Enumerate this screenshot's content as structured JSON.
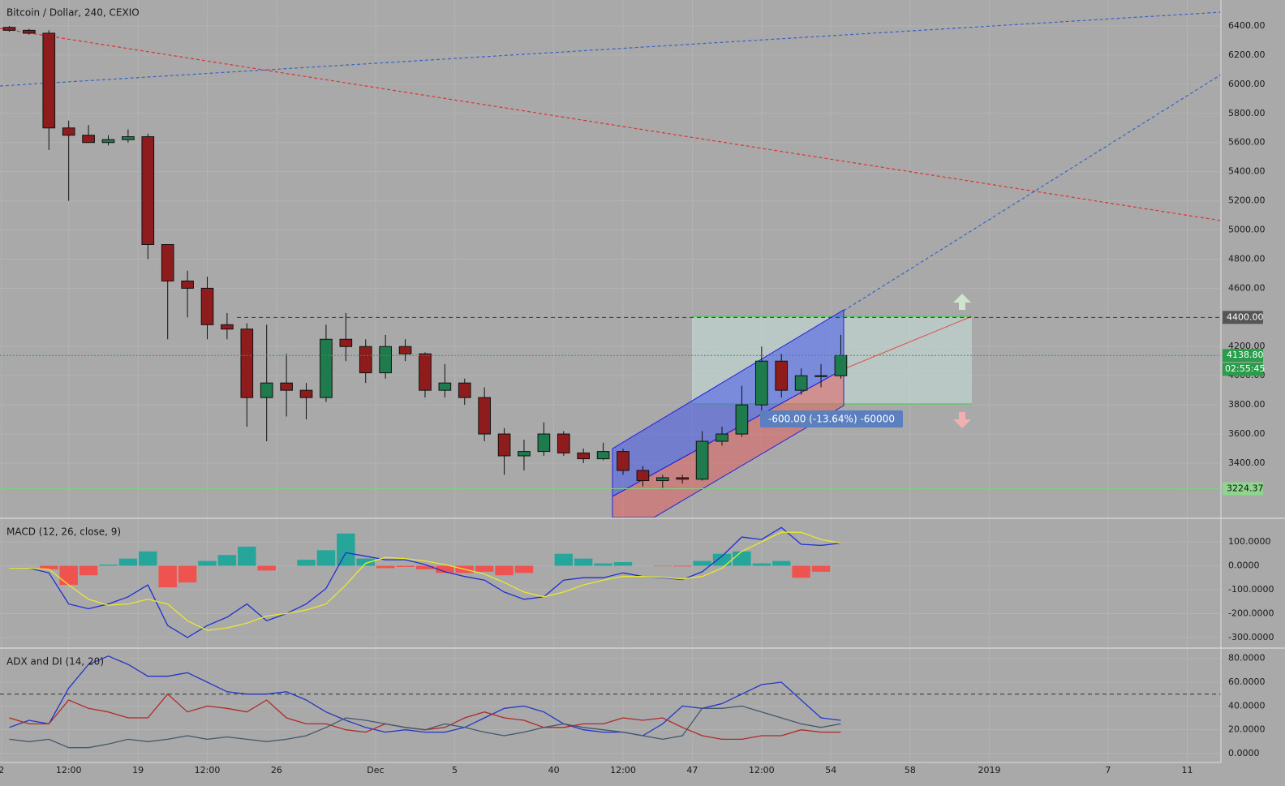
{
  "chart_data": [
    {
      "type": "candlestick",
      "title": "Bitcoin / Dollar, 240, CEXIO",
      "x": [
        12,
        13,
        14,
        15,
        16,
        17,
        18,
        19,
        20,
        21,
        22,
        23,
        24,
        25,
        26,
        27,
        28,
        29,
        30,
        31,
        32,
        33,
        34,
        35,
        36,
        37,
        38,
        39,
        40,
        41,
        42,
        43,
        44,
        45,
        46,
        47,
        48,
        49,
        50,
        51,
        52,
        53,
        54
      ],
      "open": [
        6390,
        6370,
        6350,
        5700,
        5650,
        5600,
        5620,
        5640,
        4900,
        4650,
        4600,
        4350,
        4320,
        3850,
        3950,
        3900,
        3850,
        4250,
        4200,
        4020,
        4200,
        4150,
        3900,
        3950,
        3850,
        3600,
        3450,
        3480,
        3600,
        3470,
        3430,
        3480,
        3350,
        3280,
        3300,
        3290,
        3550,
        3600,
        3800,
        4100,
        3900,
        4000,
        4000
      ],
      "high": [
        6400,
        6380,
        6370,
        5750,
        5720,
        5650,
        5690,
        5660,
        4900,
        4720,
        4680,
        4430,
        4360,
        4350,
        4150,
        3950,
        4350,
        4430,
        4250,
        4280,
        4250,
        4160,
        4080,
        3980,
        3920,
        3640,
        3560,
        3680,
        3620,
        3500,
        3540,
        3500,
        3380,
        3320,
        3320,
        3620,
        3650,
        3930,
        4200,
        4150,
        4050,
        4080,
        4280
      ],
      "low": [
        6360,
        6340,
        5550,
        5200,
        5600,
        5580,
        5600,
        4800,
        4250,
        4400,
        4250,
        4250,
        3650,
        3550,
        3720,
        3700,
        3820,
        4100,
        3950,
        3980,
        4100,
        3850,
        3850,
        3800,
        3550,
        3320,
        3350,
        3450,
        3450,
        3400,
        3420,
        3320,
        3240,
        3230,
        3260,
        3280,
        3520,
        3580,
        3720,
        3850,
        3870,
        3920,
        3980
      ],
      "close": [
        6370,
        6350,
        5700,
        5650,
        5600,
        5620,
        5640,
        4900,
        4650,
        4600,
        4350,
        4320,
        3850,
        3950,
        3900,
        3850,
        4250,
        4200,
        4020,
        4200,
        4150,
        3900,
        3950,
        3850,
        3600,
        3450,
        3480,
        3600,
        3470,
        3430,
        3480,
        3350,
        3280,
        3300,
        3290,
        3550,
        3600,
        3800,
        4100,
        3900,
        4000,
        4000,
        4138.8
      ],
      "up_color": "#1f7a4d",
      "down_color": "#8e1c1c",
      "xlim": [
        12.03,
        73.7
      ],
      "xticks": [
        {
          "value": 12.1,
          "label": "2"
        },
        {
          "value": 15.5,
          "label": "12:00"
        },
        19,
        {
          "value": 22.5,
          "label": "12:00"
        },
        26,
        {
          "value": 31,
          "label": "Dec"
        },
        {
          "value": 35,
          "label": "5"
        },
        40,
        {
          "value": 43.5,
          "label": "12:00"
        },
        47,
        {
          "value": 50.5,
          "label": "12:00"
        },
        54,
        58,
        {
          "value": 62,
          "label": "2019"
        },
        {
          "value": 68,
          "label": "7"
        },
        {
          "value": 72,
          "label": "11"
        }
      ],
      "ylim": [
        3027,
        6578
      ],
      "yticks": [
        {
          "value": 3400,
          "label": "3400.00"
        },
        {
          "value": 3600,
          "label": "3600.00"
        },
        {
          "value": 3800,
          "label": "3800.00"
        },
        {
          "value": 4000,
          "label": "4000.00"
        },
        {
          "value": 4200,
          "label": "4200.00"
        },
        {
          "value": 4600,
          "label": "4600.00"
        },
        {
          "value": 4800,
          "label": "4800.00"
        },
        {
          "value": 5000,
          "label": "5000.00"
        },
        {
          "value": 5200,
          "label": "5200.00"
        },
        {
          "value": 5400,
          "label": "5400.00"
        },
        {
          "value": 5600,
          "label": "5600.00"
        },
        {
          "value": 5800,
          "label": "5800.00"
        },
        {
          "value": 6000,
          "label": "6000.00"
        },
        {
          "value": 6200,
          "label": "6200.00"
        },
        {
          "value": 6400,
          "label": "6400.00"
        }
      ],
      "grid": true,
      "resistance": {
        "value": 4400,
        "label": "4400.00"
      },
      "last_price": {
        "value": 4138.8,
        "label": "4138.80"
      },
      "countdown": "02:55:45",
      "support": {
        "value": 3224.37,
        "label": "3224.37"
      },
      "position_label": "-600.00 (-13.64%) -60000"
    },
    {
      "type": "macd",
      "title": "MACD (12, 26, close, 9)",
      "series": [
        {
          "color": "#1f2fd0",
          "values": [
            -10,
            -10,
            -30,
            -160,
            -180,
            -160,
            -130,
            -80,
            -250,
            -300,
            -250,
            -215,
            -160,
            -230,
            -200,
            -160,
            -95,
            55,
            40,
            25,
            25,
            5,
            -25,
            -45,
            -60,
            -110,
            -140,
            -130,
            -60,
            -50,
            -50,
            -30,
            -45,
            -50,
            -58,
            -25,
            40,
            120,
            110,
            160,
            90,
            85,
            95
          ]
        },
        {
          "color": "#e8e830",
          "values": [
            -10,
            -10,
            -15,
            -80,
            -140,
            -165,
            -160,
            -140,
            -160,
            -230,
            -270,
            -260,
            -240,
            -210,
            -200,
            -185,
            -160,
            -80,
            10,
            35,
            30,
            20,
            5,
            -15,
            -35,
            -70,
            -110,
            -130,
            -110,
            -80,
            -60,
            -45,
            -45,
            -48,
            -55,
            -45,
            -10,
            60,
            100,
            140,
            140,
            110,
            95
          ]
        }
      ],
      "histogram": {
        "up_color": "#26a69a",
        "down_color": "#ef5350",
        "values": [
          0,
          0,
          -15,
          -80,
          -40,
          5,
          30,
          60,
          -90,
          -70,
          20,
          45,
          80,
          -20,
          0,
          25,
          65,
          135,
          30,
          -10,
          -5,
          -15,
          -30,
          -30,
          -25,
          -40,
          -30,
          0,
          50,
          30,
          10,
          15,
          0,
          -2,
          -3,
          20,
          50,
          60,
          10,
          20,
          -50,
          -25,
          0
        ]
      },
      "ylim": [
        -341,
        195
      ],
      "yticks": [
        {
          "value": 100,
          "label": "100.0000"
        },
        {
          "value": 0,
          "label": "0.0000"
        },
        {
          "value": -100,
          "label": "-100.0000"
        },
        {
          "value": -200,
          "label": "-200.0000"
        },
        {
          "value": -300,
          "label": "-300.0000"
        }
      ]
    },
    {
      "type": "adx",
      "title": "ADX and DI (14, 20)",
      "series": [
        {
          "color": "#2436c8",
          "values": [
            22,
            28,
            25,
            55,
            75,
            82,
            75,
            65,
            65,
            68,
            60,
            52,
            50,
            50,
            52,
            45,
            35,
            28,
            22,
            18,
            20,
            18,
            18,
            22,
            30,
            38,
            40,
            35,
            25,
            20,
            18,
            18,
            15,
            25,
            40,
            38,
            42,
            50,
            58,
            60,
            45,
            30,
            28
          ]
        },
        {
          "color": "#b02a2a",
          "values": [
            30,
            25,
            25,
            45,
            38,
            35,
            30,
            30,
            50,
            35,
            40,
            38,
            35,
            45,
            30,
            25,
            25,
            20,
            18,
            25,
            22,
            20,
            22,
            30,
            35,
            30,
            28,
            22,
            22,
            25,
            25,
            30,
            28,
            30,
            22,
            15,
            12,
            12,
            15,
            15,
            20,
            18,
            18
          ]
        },
        {
          "color": "#45586a",
          "values": [
            12,
            10,
            12,
            5,
            5,
            8,
            12,
            10,
            12,
            15,
            12,
            14,
            12,
            10,
            12,
            15,
            22,
            30,
            28,
            25,
            22,
            20,
            25,
            22,
            18,
            15,
            18,
            22,
            25,
            22,
            20,
            18,
            15,
            12,
            15,
            38,
            38,
            40,
            35,
            30,
            25,
            22,
            25
          ]
        }
      ],
      "level": 50,
      "ylim": [
        -7.5,
        88
      ],
      "yticks": [
        {
          "value": 0,
          "label": "0.0000"
        },
        {
          "value": 20,
          "label": "20.0000"
        },
        {
          "value": 40,
          "label": "40.0000"
        },
        {
          "value": 60,
          "label": "60.0000"
        },
        {
          "value": 80,
          "label": "80.0000"
        }
      ]
    }
  ]
}
